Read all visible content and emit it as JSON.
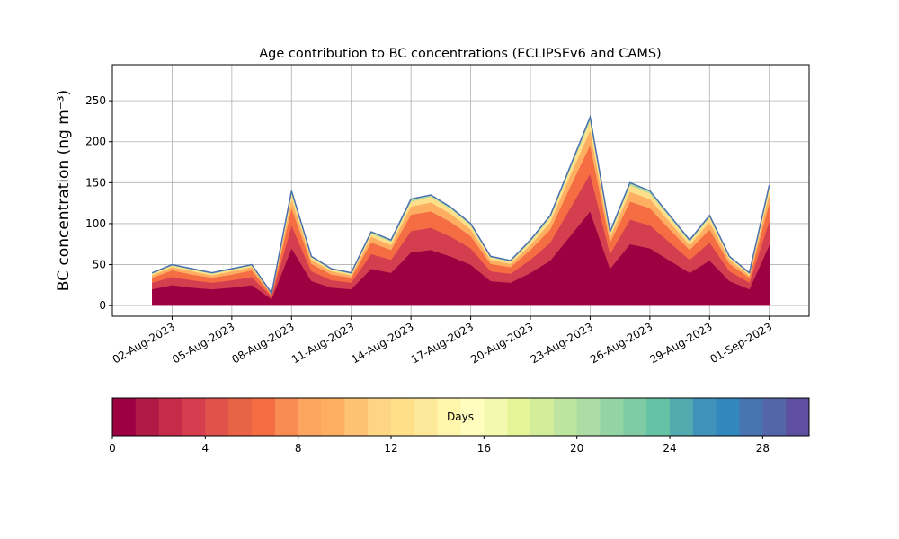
{
  "chart_data": {
    "type": "area",
    "stacked": true,
    "title": "Age contribution to BC concentrations (ECLIPSEv6 and CAMS)",
    "ylabel": "BC concentration (ng m⁻³)",
    "x": [
      "2023-08-01",
      "2023-08-02",
      "2023-08-03",
      "2023-08-04",
      "2023-08-05",
      "2023-08-06",
      "2023-08-07",
      "2023-08-08",
      "2023-08-09",
      "2023-08-10",
      "2023-08-11",
      "2023-08-12",
      "2023-08-13",
      "2023-08-14",
      "2023-08-15",
      "2023-08-16",
      "2023-08-17",
      "2023-08-18",
      "2023-08-19",
      "2023-08-20",
      "2023-08-21",
      "2023-08-22",
      "2023-08-23",
      "2023-08-24",
      "2023-08-25",
      "2023-08-26",
      "2023-08-27",
      "2023-08-28",
      "2023-08-29",
      "2023-08-30",
      "2023-08-31",
      "2023-09-01"
    ],
    "series": [
      {
        "color": "#9e0142",
        "values": [
          20,
          25,
          22,
          20,
          22,
          25,
          8,
          70,
          30,
          22,
          20,
          45,
          40,
          65,
          68,
          60,
          50,
          30,
          28,
          40,
          55,
          85,
          115,
          45,
          75,
          70,
          55,
          40,
          55,
          30,
          20,
          74
        ]
      },
      {
        "color": "#d53e4f",
        "values": [
          8,
          10,
          9,
          8,
          9,
          10,
          3,
          28,
          12,
          9,
          8,
          18,
          16,
          26,
          27,
          24,
          20,
          12,
          11,
          16,
          22,
          34,
          46,
          18,
          30,
          28,
          22,
          16,
          22,
          12,
          8,
          29
        ]
      },
      {
        "color": "#f46d43",
        "values": [
          6,
          8,
          7,
          6,
          7,
          8,
          2,
          21,
          9,
          7,
          6,
          14,
          12,
          20,
          20,
          18,
          15,
          9,
          8,
          12,
          16,
          26,
          35,
          14,
          22,
          21,
          16,
          12,
          16,
          9,
          6,
          22
        ]
      },
      {
        "color": "#fdae61",
        "values": [
          3,
          4,
          4,
          3,
          4,
          4,
          1,
          11,
          5,
          4,
          3,
          7,
          6,
          10,
          11,
          10,
          8,
          5,
          4,
          6,
          9,
          14,
          18,
          7,
          12,
          11,
          9,
          6,
          9,
          5,
          3,
          12
        ]
      },
      {
        "color": "#fee08b",
        "values": [
          2,
          2,
          2,
          2,
          2,
          2,
          1,
          7,
          3,
          2,
          2,
          4,
          4,
          6,
          7,
          6,
          5,
          3,
          3,
          4,
          6,
          8,
          12,
          4,
          8,
          7,
          6,
          4,
          6,
          3,
          2,
          7
        ]
      },
      {
        "color": "#abdda4",
        "values": [
          1,
          1,
          1,
          1,
          1,
          1,
          0,
          3,
          1,
          1,
          1,
          2,
          2,
          3,
          2,
          2,
          2,
          1,
          1,
          2,
          2,
          3,
          4,
          2,
          3,
          3,
          2,
          2,
          2,
          1,
          1,
          3
        ]
      }
    ],
    "line_color": "#4c6fae",
    "xlim": [
      "2023-07-30",
      "2023-09-03"
    ],
    "xticks": [
      {
        "value": "2023-08-02",
        "label": "02-Aug-2023"
      },
      {
        "value": "2023-08-05",
        "label": "05-Aug-2023"
      },
      {
        "value": "2023-08-08",
        "label": "08-Aug-2023"
      },
      {
        "value": "2023-08-11",
        "label": "11-Aug-2023"
      },
      {
        "value": "2023-08-14",
        "label": "14-Aug-2023"
      },
      {
        "value": "2023-08-17",
        "label": "17-Aug-2023"
      },
      {
        "value": "2023-08-20",
        "label": "20-Aug-2023"
      },
      {
        "value": "2023-08-23",
        "label": "23-Aug-2023"
      },
      {
        "value": "2023-08-26",
        "label": "26-Aug-2023"
      },
      {
        "value": "2023-08-29",
        "label": "29-Aug-2023"
      },
      {
        "value": "2023-09-01",
        "label": "01-Sep-2023"
      }
    ],
    "ylim": [
      -13,
      294
    ],
    "yticks": [
      0,
      50,
      100,
      150,
      200,
      250
    ],
    "grid": true,
    "colorbar": {
      "label": "Days",
      "lim": [
        0,
        30
      ],
      "ticks": [
        0,
        4,
        8,
        12,
        16,
        20,
        24,
        28
      ],
      "colors": [
        "#9e0142",
        "#b11a45",
        "#c42c49",
        "#d53e4f",
        "#e0524b",
        "#e96447",
        "#f46d43",
        "#f88d53",
        "#fba55e",
        "#fdae61",
        "#fdc373",
        "#fed585",
        "#fee08b",
        "#fee99b",
        "#fff5ab",
        "#fffebe",
        "#f3faaf",
        "#e6f598",
        "#d4ed9b",
        "#bde5a0",
        "#abdda4",
        "#94d3a4",
        "#7fcba4",
        "#66c2a5",
        "#53aaaf",
        "#3f92b9",
        "#3288bd",
        "#4775b1",
        "#5466a8",
        "#5e4fa2"
      ]
    }
  }
}
